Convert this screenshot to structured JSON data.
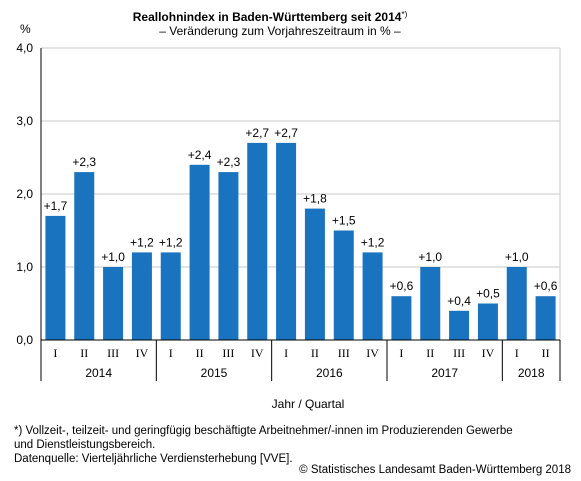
{
  "chart_data": {
    "type": "bar",
    "title": "Reallohnindex in Baden-Württemberg seit 2014",
    "title_marker": "*)",
    "subtitle": "– Veränderung zum Vorjahreszeitraum in % –",
    "ylabel": "%",
    "xlabel": "Jahr / Quartal",
    "ylim": [
      0,
      4
    ],
    "yticks": [
      0,
      1,
      2,
      3,
      4
    ],
    "ytick_labels": [
      "0,0",
      "1,0",
      "2,0",
      "3,0",
      "4,0"
    ],
    "grid": true,
    "bar_color": "#1a73be",
    "categories": [
      "I",
      "II",
      "III",
      "IV",
      "I",
      "II",
      "III",
      "IV",
      "I",
      "II",
      "III",
      "IV",
      "I",
      "II",
      "III",
      "IV",
      "I",
      "II"
    ],
    "values": [
      1.7,
      2.3,
      1.0,
      1.2,
      1.2,
      2.4,
      2.3,
      2.7,
      2.7,
      1.8,
      1.5,
      1.2,
      0.6,
      1.0,
      0.4,
      0.5,
      1.0,
      0.6
    ],
    "value_labels": [
      "+1,7",
      "+2,3",
      "+1,0",
      "+1,2",
      "+1,2",
      "+2,4",
      "+2,3",
      "+2,7",
      "+2,7",
      "+1,8",
      "+1,5",
      "+1,2",
      "+0,6",
      "+1,0",
      "+0,4",
      "+0,5",
      "+1,0",
      "+0,6"
    ],
    "groups": [
      {
        "label": "2014",
        "count": 4
      },
      {
        "label": "2015",
        "count": 4
      },
      {
        "label": "2016",
        "count": 4
      },
      {
        "label": "2017",
        "count": 4
      },
      {
        "label": "2018",
        "count": 2
      }
    ]
  },
  "footnote_line1": "*) Vollzeit-, teilzeit- und geringfügig beschäftigte Arbeitnehmer/-innen im Produzierenden Gewerbe",
  "footnote_line2": "und Dienstleistungsbereich.",
  "source": "Datenquelle: Vierteljährliche Verdiensterhebung [VVE].",
  "credit": "© Statistisches Landesamt Baden-Württemberg 2018"
}
